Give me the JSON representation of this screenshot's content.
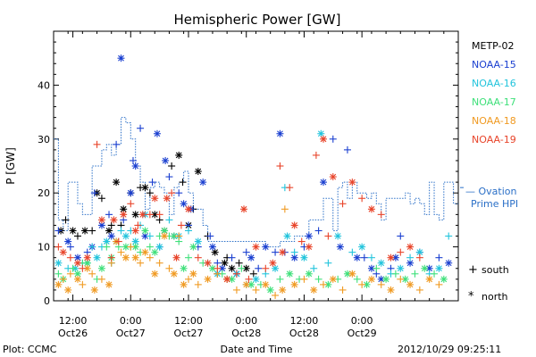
{
  "chart_data": {
    "type": "scatter",
    "title": "Hemispheric Power [GW]",
    "ylabel": "P [GW]",
    "xlabel": "Date and Time",
    "ylim": [
      0,
      50
    ],
    "xlim_hours": [
      -16,
      68
    ],
    "y_ticks": [
      0,
      10,
      20,
      30,
      40
    ],
    "x_ticks": [
      {
        "hour": -12,
        "line1": "12:00",
        "line2": "Oct26"
      },
      {
        "hour": 0,
        "line1": "0:00",
        "line2": "Oct27"
      },
      {
        "hour": 12,
        "line1": "12:00",
        "line2": "Oct27"
      },
      {
        "hour": 24,
        "line1": "0:00",
        "line2": "Oct28"
      },
      {
        "hour": 36,
        "line1": "12:00",
        "line2": "Oct28"
      },
      {
        "hour": 48,
        "line1": "0:00",
        "line2": "Oct29"
      }
    ],
    "legend": [
      "METP-02",
      "NOAA-15",
      "NOAA-16",
      "NOAA-17",
      "NOAA-18",
      "NOAA-19"
    ],
    "legend_colors": [
      "#000000",
      "#1a3fd0",
      "#22c4dc",
      "#3ee07a",
      "#f09a22",
      "#e8442a"
    ],
    "ovation": {
      "label_line1": "— Ovation",
      "label_line2": "Prime HPI",
      "color": "#2a6fc7",
      "x_hours": [
        -16,
        -15,
        -14,
        -13,
        -11,
        -10,
        -8,
        -6,
        -5,
        -4,
        -3,
        -2,
        -1,
        0,
        1,
        2,
        3,
        4,
        5,
        6,
        7,
        8,
        9,
        10,
        11,
        12,
        13,
        15,
        16,
        17,
        20,
        25,
        28,
        30,
        31,
        34,
        37,
        40,
        42,
        43,
        44,
        45,
        46,
        47,
        48,
        49,
        50,
        51,
        52,
        53,
        55,
        57,
        58,
        59,
        60,
        61,
        62,
        63,
        64,
        65,
        66,
        67,
        68
      ],
      "y": [
        30,
        15,
        13,
        22,
        18,
        16,
        25,
        28,
        29,
        27,
        29,
        34,
        33,
        30,
        25,
        22,
        17,
        21,
        22,
        21,
        20,
        16,
        21,
        22,
        24,
        20,
        17,
        14,
        11,
        11,
        11,
        11,
        10,
        10,
        11,
        12,
        15,
        19,
        13,
        21,
        22,
        19,
        22,
        20,
        20,
        19,
        20,
        18,
        15,
        19,
        19,
        20,
        18,
        19,
        18,
        16,
        22,
        16,
        15,
        22,
        22,
        18,
        18
      ]
    },
    "series": [
      {
        "name": "METP-02",
        "color": "#000000",
        "marker": "mixed",
        "x": [
          -14.5,
          -13.5,
          -12,
          -11,
          -9.5,
          -8,
          -7,
          -6,
          -4.5,
          -4,
          -3,
          -2,
          -1.5,
          0,
          1,
          2,
          3,
          4,
          5,
          6,
          7,
          8.5,
          10,
          10.8,
          12,
          13,
          14,
          16,
          17.5,
          18,
          19.5,
          20,
          21,
          22.5,
          24,
          25.5
        ],
        "y": [
          13,
          15,
          13,
          12,
          13,
          13,
          20,
          19,
          13,
          14,
          22,
          14,
          17,
          20,
          16,
          21,
          21,
          20,
          16,
          15,
          13,
          25,
          27,
          22,
          14,
          17,
          24,
          12,
          9,
          5,
          7,
          8,
          6,
          7,
          6,
          5
        ]
      },
      {
        "name": "NOAA-15",
        "color": "#1a3fd0",
        "marker": "mixed",
        "x": [
          -15,
          -13,
          -12.5,
          -11,
          -9,
          -8,
          -7.5,
          -6,
          -4.5,
          -4,
          -3,
          -2,
          -1.5,
          0,
          0.5,
          1,
          2,
          3,
          4.5,
          5.5,
          6,
          7.2,
          8,
          9,
          10,
          11,
          12,
          12.5,
          14,
          15,
          16.5,
          17,
          18,
          19,
          21,
          22,
          24,
          25,
          26.5,
          28,
          30,
          31,
          32,
          34,
          36,
          37,
          39,
          40,
          42,
          43.5,
          45,
          47,
          48.5,
          50,
          51,
          52,
          54,
          55,
          56,
          58,
          60,
          62,
          64,
          66
        ],
        "y": [
          13,
          11,
          10,
          8,
          9,
          10,
          20,
          14,
          16,
          12,
          29,
          45,
          15,
          20,
          26,
          25,
          32,
          12,
          22,
          31,
          10,
          26,
          23,
          12,
          20,
          18,
          14,
          17,
          10,
          22,
          12,
          10,
          7,
          6,
          8,
          5,
          9,
          8,
          6,
          10,
          9,
          31,
          9,
          8,
          10,
          12,
          13,
          22,
          30,
          10,
          28,
          8,
          8,
          6,
          5,
          4,
          6,
          8,
          12,
          7,
          9,
          6,
          8,
          7
        ]
      },
      {
        "name": "NOAA-16",
        "color": "#22c4dc",
        "marker": "mixed",
        "x": [
          -15,
          -13,
          -11.5,
          -10,
          -9,
          -8,
          -7,
          -6,
          -5,
          -4,
          -3,
          -2,
          -1,
          0,
          1,
          2,
          3,
          4,
          6,
          8,
          10,
          12,
          14,
          16,
          18,
          20,
          22,
          24,
          26,
          28,
          30,
          32,
          32.5,
          34,
          36,
          38,
          39.5,
          41,
          43,
          46,
          48,
          50,
          52,
          54,
          56,
          58,
          60,
          62,
          64,
          66
        ],
        "y": [
          7,
          6,
          6,
          7,
          7,
          10,
          8,
          10,
          11,
          7,
          11,
          13,
          12,
          13,
          11,
          14,
          16,
          12,
          10,
          15,
          12,
          13,
          11,
          7,
          5,
          4,
          5,
          3,
          4,
          5,
          6,
          21,
          12,
          9,
          8,
          6,
          31,
          7,
          12,
          9,
          10,
          8,
          7,
          5,
          6,
          8,
          9,
          5,
          6,
          12
        ]
      },
      {
        "name": "NOAA-17",
        "color": "#3ee07a",
        "marker": "mixed",
        "x": [
          -15,
          -14,
          -12,
          -11,
          -10,
          -9,
          -7,
          -6,
          -5,
          -4,
          -2.5,
          -1,
          0,
          1,
          2,
          3,
          4,
          5,
          6,
          7,
          8,
          9,
          10,
          11,
          12,
          13,
          15,
          17,
          19,
          21,
          23,
          25,
          27,
          29,
          31,
          33,
          35,
          37,
          39,
          41,
          43,
          45,
          47,
          49,
          51,
          53,
          55,
          57,
          59,
          61,
          63,
          65
        ],
        "y": [
          5,
          4,
          6,
          5,
          7,
          7,
          4,
          6,
          10,
          8,
          10,
          10,
          10,
          10,
          9,
          13,
          10,
          9,
          12,
          13,
          12,
          12,
          11,
          6,
          8,
          10,
          7,
          6,
          5,
          4,
          6,
          3,
          3,
          2,
          4,
          5,
          4,
          5,
          4,
          3,
          4,
          5,
          4,
          3,
          6,
          4,
          5,
          4,
          5,
          6,
          5,
          4
        ]
      },
      {
        "name": "NOAA-18",
        "color": "#f09a22",
        "marker": "mixed",
        "x": [
          -15,
          -14,
          -13,
          -12.5,
          -11,
          -10,
          -9,
          -8,
          -7.5,
          -6,
          -4.5,
          -4,
          -3,
          -2,
          -1,
          0,
          1,
          2,
          3,
          4,
          5,
          6,
          7,
          8,
          9,
          10,
          11,
          12,
          13,
          14,
          16,
          18,
          20,
          22,
          24,
          26,
          28,
          30,
          31.5,
          32,
          34,
          36,
          38,
          40,
          42,
          44,
          46,
          48,
          50,
          52,
          54,
          56,
          58,
          60,
          62,
          64
        ],
        "y": [
          3,
          4,
          2,
          5,
          4,
          3,
          6,
          5,
          2,
          4,
          3,
          7,
          11,
          9,
          8,
          10,
          8,
          7,
          9,
          8,
          5,
          7,
          12,
          6,
          5,
          12,
          3,
          4,
          5,
          3,
          4,
          5,
          4,
          2,
          3,
          2,
          3,
          1,
          2,
          17,
          3,
          4,
          2,
          3,
          4,
          2,
          5,
          3,
          4,
          3,
          2,
          4,
          3,
          2,
          4,
          3
        ]
      },
      {
        "name": "NOAA-19",
        "color": "#e8442a",
        "marker": "mixed",
        "x": [
          -15,
          -14,
          -12.5,
          -11,
          -10,
          -9,
          -7,
          -6,
          -4,
          -3.5,
          -2.5,
          -1.5,
          0,
          1,
          1.5,
          2.5,
          4,
          5,
          6,
          7.5,
          8.5,
          9.5,
          10.5,
          12,
          14,
          16,
          18,
          20,
          22,
          23.5,
          24.5,
          26,
          28,
          29.5,
          31,
          31.5,
          33,
          34,
          35.5,
          37,
          38.5,
          40,
          41,
          42,
          44,
          46,
          48,
          50,
          52,
          54,
          56,
          58,
          60
        ],
        "y": [
          10,
          9,
          8,
          7,
          6,
          8,
          29,
          15,
          8,
          15,
          11,
          16,
          18,
          13,
          14,
          16,
          16,
          19,
          16,
          19,
          20,
          8,
          14,
          17,
          8,
          7,
          6,
          4,
          5,
          17,
          4,
          10,
          6,
          7,
          25,
          9,
          21,
          14,
          11,
          10,
          27,
          30,
          12,
          23,
          18,
          22,
          19,
          17,
          16,
          8,
          9,
          10,
          8
        ]
      }
    ],
    "marker_legend": [
      {
        "symbol": "+",
        "label": "south"
      },
      {
        "symbol": "*",
        "label": "north"
      }
    ]
  },
  "footer": {
    "plot_credit": "Plot: CCMC",
    "timestamp": "2012/10/29 09:25:11"
  }
}
